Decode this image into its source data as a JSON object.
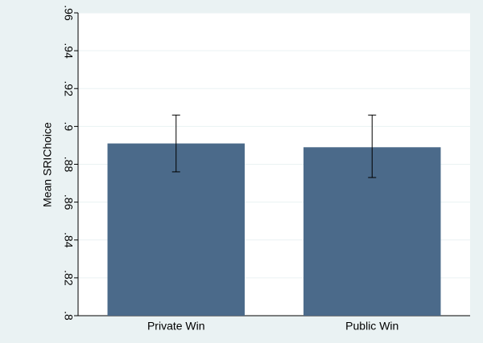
{
  "chart_data": {
    "type": "bar",
    "y_label": "Mean SRIChoice",
    "categories": [
      "Private Win",
      "Public Win"
    ],
    "values": [
      0.891,
      0.889
    ],
    "error_low": [
      0.876,
      0.873
    ],
    "error_high": [
      0.906,
      0.906
    ],
    "color": "#4b6a8a",
    "ylim": [
      0.8,
      0.96
    ],
    "yticks": [
      {
        "value": 0.8,
        "label": ".8"
      },
      {
        "value": 0.82,
        "label": ".82"
      },
      {
        "value": 0.84,
        "label": ".84"
      },
      {
        "value": 0.86,
        "label": ".86"
      },
      {
        "value": 0.88,
        "label": ".88"
      },
      {
        "value": 0.9,
        "label": ".9"
      },
      {
        "value": 0.92,
        "label": ".92"
      },
      {
        "value": 0.94,
        "label": ".94"
      },
      {
        "value": 0.96,
        "label": ".96"
      }
    ],
    "grid": true
  }
}
